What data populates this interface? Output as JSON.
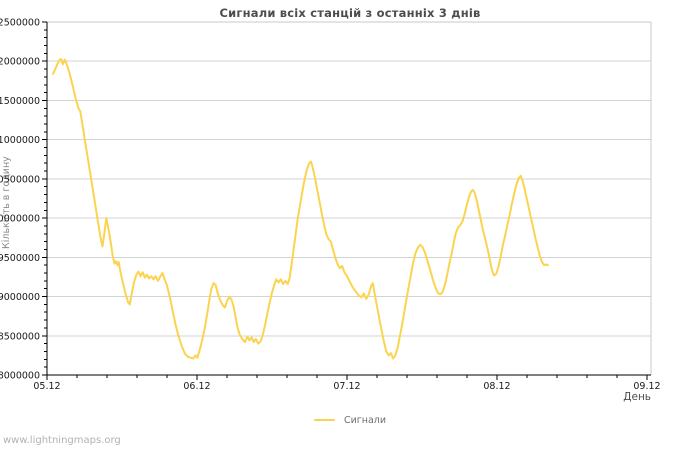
{
  "chart_data": {
    "type": "line",
    "title": "Сигнали всіх станцій з останніх 3 днів",
    "xlabel": "День",
    "ylabel": "Кількість в годину",
    "watermark": "www.lightningmaps.org",
    "grid": "horizontal-only",
    "legend_position": "bottom-center",
    "colors": {
      "line": "#fbd44f",
      "grid": "#d3d3d3",
      "plot_border": "#c9c9c9",
      "axis": "#000000",
      "title_text": "#4d4d4d",
      "tick_text": "#1a1a1a"
    },
    "x_tick_labels": [
      "05.12",
      "06.12",
      "07.12",
      "08.12",
      "09.12"
    ],
    "x_tick_days": [
      0,
      1,
      2,
      3,
      4
    ],
    "xlim_days": [
      0,
      4
    ],
    "y_tick_labels": [
      "8000000",
      "8500000",
      "9000000",
      "9500000",
      "10000000",
      "10500000",
      "11000000",
      "11500000",
      "12000000",
      "12500000"
    ],
    "ylim": [
      8000000,
      12500000
    ],
    "series": [
      {
        "name": "Сигнали",
        "color": "#fbd44f",
        "x_unit": "days since 05.12 00:00",
        "y_unit": "signals per hour, value × 1000000",
        "points": [
          [
            0.04,
            11.84
          ],
          [
            0.055,
            11.9
          ],
          [
            0.07,
            11.97
          ],
          [
            0.085,
            12.02
          ],
          [
            0.093,
            12.03
          ],
          [
            0.105,
            11.96
          ],
          [
            0.118,
            12.02
          ],
          [
            0.13,
            11.97
          ],
          [
            0.15,
            11.85
          ],
          [
            0.172,
            11.68
          ],
          [
            0.192,
            11.52
          ],
          [
            0.21,
            11.4
          ],
          [
            0.222,
            11.36
          ],
          [
            0.24,
            11.15
          ],
          [
            0.262,
            10.88
          ],
          [
            0.29,
            10.55
          ],
          [
            0.315,
            10.25
          ],
          [
            0.34,
            9.95
          ],
          [
            0.358,
            9.74
          ],
          [
            0.37,
            9.64
          ],
          [
            0.383,
            9.82
          ],
          [
            0.395,
            10.0
          ],
          [
            0.41,
            9.86
          ],
          [
            0.424,
            9.7
          ],
          [
            0.438,
            9.52
          ],
          [
            0.45,
            9.42
          ],
          [
            0.46,
            9.45
          ],
          [
            0.47,
            9.4
          ],
          [
            0.478,
            9.44
          ],
          [
            0.49,
            9.31
          ],
          [
            0.508,
            9.16
          ],
          [
            0.524,
            9.03
          ],
          [
            0.54,
            8.93
          ],
          [
            0.552,
            8.9
          ],
          [
            0.565,
            9.04
          ],
          [
            0.58,
            9.18
          ],
          [
            0.596,
            9.28
          ],
          [
            0.61,
            9.32
          ],
          [
            0.624,
            9.26
          ],
          [
            0.638,
            9.31
          ],
          [
            0.652,
            9.24
          ],
          [
            0.666,
            9.28
          ],
          [
            0.68,
            9.23
          ],
          [
            0.695,
            9.26
          ],
          [
            0.71,
            9.22
          ],
          [
            0.724,
            9.26
          ],
          [
            0.74,
            9.2
          ],
          [
            0.756,
            9.26
          ],
          [
            0.77,
            9.3
          ],
          [
            0.784,
            9.22
          ],
          [
            0.8,
            9.14
          ],
          [
            0.818,
            9.0
          ],
          [
            0.835,
            8.84
          ],
          [
            0.856,
            8.65
          ],
          [
            0.876,
            8.5
          ],
          [
            0.898,
            8.37
          ],
          [
            0.92,
            8.27
          ],
          [
            0.94,
            8.23
          ],
          [
            0.958,
            8.22
          ],
          [
            0.975,
            8.21
          ],
          [
            0.99,
            8.25
          ],
          [
            1.003,
            8.22
          ],
          [
            1.018,
            8.32
          ],
          [
            1.035,
            8.45
          ],
          [
            1.052,
            8.6
          ],
          [
            1.068,
            8.78
          ],
          [
            1.082,
            8.95
          ],
          [
            1.096,
            9.1
          ],
          [
            1.11,
            9.17
          ],
          [
            1.124,
            9.15
          ],
          [
            1.14,
            9.03
          ],
          [
            1.155,
            8.95
          ],
          [
            1.172,
            8.89
          ],
          [
            1.186,
            8.86
          ],
          [
            1.2,
            8.94
          ],
          [
            1.214,
            8.99
          ],
          [
            1.228,
            8.97
          ],
          [
            1.243,
            8.88
          ],
          [
            1.258,
            8.73
          ],
          [
            1.272,
            8.59
          ],
          [
            1.288,
            8.5
          ],
          [
            1.305,
            8.45
          ],
          [
            1.32,
            8.42
          ],
          [
            1.335,
            8.49
          ],
          [
            1.35,
            8.44
          ],
          [
            1.364,
            8.48
          ],
          [
            1.378,
            8.42
          ],
          [
            1.392,
            8.46
          ],
          [
            1.408,
            8.4
          ],
          [
            1.424,
            8.43
          ],
          [
            1.44,
            8.52
          ],
          [
            1.455,
            8.65
          ],
          [
            1.47,
            8.79
          ],
          [
            1.485,
            8.93
          ],
          [
            1.5,
            9.05
          ],
          [
            1.514,
            9.14
          ],
          [
            1.528,
            9.22
          ],
          [
            1.544,
            9.18
          ],
          [
            1.558,
            9.22
          ],
          [
            1.574,
            9.16
          ],
          [
            1.59,
            9.2
          ],
          [
            1.605,
            9.16
          ],
          [
            1.618,
            9.24
          ],
          [
            1.63,
            9.4
          ],
          [
            1.644,
            9.6
          ],
          [
            1.658,
            9.8
          ],
          [
            1.672,
            10.0
          ],
          [
            1.688,
            10.18
          ],
          [
            1.703,
            10.35
          ],
          [
            1.718,
            10.5
          ],
          [
            1.733,
            10.62
          ],
          [
            1.748,
            10.7
          ],
          [
            1.76,
            10.72
          ],
          [
            1.772,
            10.64
          ],
          [
            1.788,
            10.5
          ],
          [
            1.803,
            10.35
          ],
          [
            1.818,
            10.2
          ],
          [
            1.833,
            10.05
          ],
          [
            1.848,
            9.91
          ],
          [
            1.863,
            9.79
          ],
          [
            1.878,
            9.73
          ],
          [
            1.893,
            9.7
          ],
          [
            1.908,
            9.59
          ],
          [
            1.923,
            9.49
          ],
          [
            1.938,
            9.41
          ],
          [
            1.953,
            9.36
          ],
          [
            1.968,
            9.39
          ],
          [
            1.983,
            9.31
          ],
          [
            2.0,
            9.26
          ],
          [
            2.016,
            9.2
          ],
          [
            2.032,
            9.14
          ],
          [
            2.048,
            9.09
          ],
          [
            2.064,
            9.05
          ],
          [
            2.08,
            9.01
          ],
          [
            2.096,
            8.99
          ],
          [
            2.112,
            9.04
          ],
          [
            2.128,
            8.97
          ],
          [
            2.145,
            9.03
          ],
          [
            2.162,
            9.14
          ],
          [
            2.172,
            9.17
          ],
          [
            2.186,
            9.02
          ],
          [
            2.205,
            8.82
          ],
          [
            2.225,
            8.62
          ],
          [
            2.245,
            8.43
          ],
          [
            2.262,
            8.3
          ],
          [
            2.278,
            8.25
          ],
          [
            2.292,
            8.28
          ],
          [
            2.308,
            8.21
          ],
          [
            2.322,
            8.25
          ],
          [
            2.338,
            8.35
          ],
          [
            2.352,
            8.49
          ],
          [
            2.367,
            8.64
          ],
          [
            2.382,
            8.8
          ],
          [
            2.397,
            8.97
          ],
          [
            2.412,
            9.13
          ],
          [
            2.427,
            9.29
          ],
          [
            2.442,
            9.44
          ],
          [
            2.456,
            9.55
          ],
          [
            2.472,
            9.62
          ],
          [
            2.488,
            9.66
          ],
          [
            2.503,
            9.63
          ],
          [
            2.518,
            9.57
          ],
          [
            2.533,
            9.48
          ],
          [
            2.548,
            9.38
          ],
          [
            2.563,
            9.28
          ],
          [
            2.578,
            9.18
          ],
          [
            2.593,
            9.1
          ],
          [
            2.608,
            9.04
          ],
          [
            2.623,
            9.03
          ],
          [
            2.638,
            9.06
          ],
          [
            2.653,
            9.15
          ],
          [
            2.668,
            9.28
          ],
          [
            2.683,
            9.42
          ],
          [
            2.698,
            9.55
          ],
          [
            2.712,
            9.69
          ],
          [
            2.726,
            9.81
          ],
          [
            2.74,
            9.88
          ],
          [
            2.755,
            9.91
          ],
          [
            2.77,
            9.96
          ],
          [
            2.785,
            10.06
          ],
          [
            2.8,
            10.18
          ],
          [
            2.815,
            10.28
          ],
          [
            2.828,
            10.34
          ],
          [
            2.84,
            10.36
          ],
          [
            2.853,
            10.31
          ],
          [
            2.866,
            10.22
          ],
          [
            2.88,
            10.09
          ],
          [
            2.894,
            9.96
          ],
          [
            2.908,
            9.83
          ],
          [
            2.922,
            9.73
          ],
          [
            2.937,
            9.61
          ],
          [
            2.952,
            9.47
          ],
          [
            2.966,
            9.34
          ],
          [
            2.98,
            9.27
          ],
          [
            2.995,
            9.29
          ],
          [
            3.01,
            9.38
          ],
          [
            3.025,
            9.52
          ],
          [
            3.04,
            9.66
          ],
          [
            3.055,
            9.79
          ],
          [
            3.07,
            9.92
          ],
          [
            3.085,
            10.05
          ],
          [
            3.1,
            10.19
          ],
          [
            3.115,
            10.32
          ],
          [
            3.13,
            10.43
          ],
          [
            3.145,
            10.51
          ],
          [
            3.158,
            10.54
          ],
          [
            3.17,
            10.48
          ],
          [
            3.183,
            10.38
          ],
          [
            3.197,
            10.26
          ],
          [
            3.212,
            10.13
          ],
          [
            3.227,
            10.0
          ],
          [
            3.242,
            9.87
          ],
          [
            3.257,
            9.74
          ],
          [
            3.272,
            9.62
          ],
          [
            3.287,
            9.51
          ],
          [
            3.3,
            9.44
          ],
          [
            3.315,
            9.4
          ],
          [
            3.33,
            9.41
          ],
          [
            3.34,
            9.4
          ]
        ]
      }
    ]
  }
}
